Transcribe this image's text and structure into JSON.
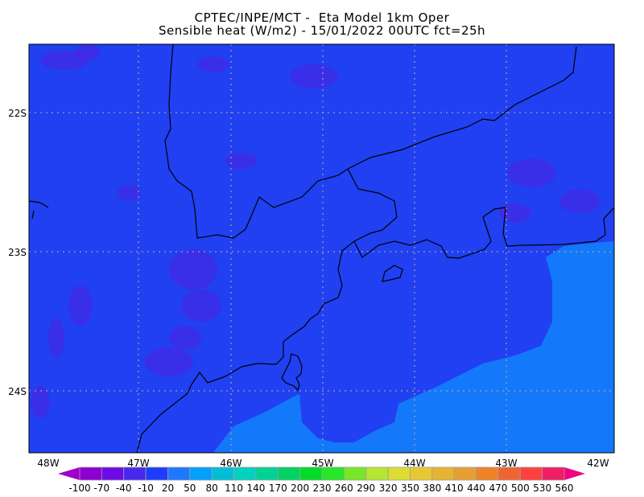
{
  "title": {
    "line1": "CPTEC/INPE/MCT -  Eta Model 1km Oper",
    "line2": "Sensible heat (W/m2) - 15/01/2022 00UTC fct=25h"
  },
  "map": {
    "region": "Southeastern Brazil",
    "lon_labels": [
      "48W",
      "47W",
      "46W",
      "45W",
      "44W",
      "43W",
      "42W"
    ],
    "lat_labels": [
      "22S",
      "23S",
      "24S"
    ],
    "grid": "dotted",
    "land_color": "#2040f2",
    "ocean_color": "#1478fa",
    "patch_color": "#5020e0",
    "boundary_color": "#000000",
    "grid_color": "#c8b48c"
  },
  "colorbar": {
    "labels": [
      "-100",
      "-70",
      "-40",
      "-10",
      "20",
      "50",
      "80",
      "110",
      "140",
      "170",
      "200",
      "230",
      "260",
      "290",
      "320",
      "350",
      "380",
      "410",
      "440",
      "470",
      "500",
      "530",
      "560"
    ],
    "under_color": "#a000c8",
    "over_color": "#f00082",
    "colors": [
      "#8c00d2",
      "#6e0ae6",
      "#4628f0",
      "#1e3cff",
      "#1e78ff",
      "#00a0ff",
      "#00bed8",
      "#00d2c0",
      "#00d296",
      "#00d264",
      "#00dc28",
      "#28e628",
      "#78e628",
      "#b4e632",
      "#dcdc32",
      "#e6c832",
      "#e6b432",
      "#e6a032",
      "#f08228",
      "#f06432",
      "#ff4040",
      "#f01e64"
    ]
  }
}
